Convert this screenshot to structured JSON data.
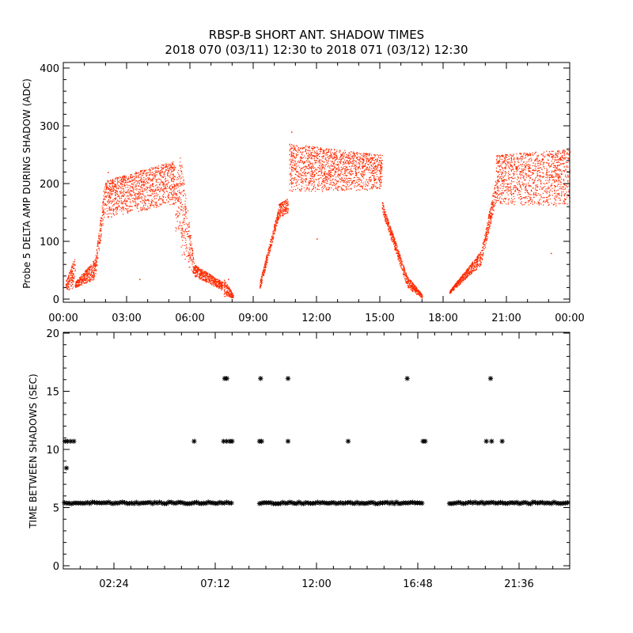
{
  "title": {
    "line1": "RBSP-B SHORT ANT. SHADOW TIMES",
    "line2": "2018 070 (03/11) 12:30 to 2018 071 (03/12) 12:30"
  },
  "colors": {
    "amplitude_points": "#ff2a00",
    "axes": "#000000",
    "background": "#ffffff"
  },
  "chart_data": [
    {
      "type": "scatter",
      "ylabel": "Probe 5 DELTA AMP DURING SHADOW (ADC)",
      "ylim": [
        0,
        400
      ],
      "yticks": [
        "0",
        "100",
        "200",
        "300",
        "400"
      ],
      "xlim_hours": [
        0,
        24
      ],
      "xticks": [
        "00:00",
        "03:00",
        "06:00",
        "09:00",
        "12:00",
        "15:00",
        "18:00",
        "21:00",
        "00:00"
      ],
      "marker": "dot",
      "series": [
        {
          "bands": [
            {
              "x_start": 0.1,
              "x_end": 0.55,
              "low": [
                15,
                20
              ],
              "high": [
                30,
                75
              ]
            },
            {
              "x_start": 0.55,
              "x_end": 1.5,
              "low": [
                20,
                35
              ],
              "high": [
                30,
                70
              ]
            },
            {
              "x_start": 1.5,
              "x_end": 1.9,
              "low": [
                35,
                140
              ],
              "high": [
                70,
                185
              ]
            },
            {
              "x_start": 1.9,
              "x_end": 5.3,
              "low": [
                140,
                165
              ],
              "high": [
                205,
                240
              ]
            },
            {
              "x_start": 5.3,
              "x_end": 5.55,
              "low": [
                110,
                120
              ],
              "high": [
                200,
                250
              ]
            },
            {
              "x_start": 5.55,
              "x_end": 6.2,
              "low": [
                80,
                40
              ],
              "high": [
                250,
                60
              ]
            },
            {
              "x_start": 6.2,
              "x_end": 7.55,
              "low": [
                40,
                15
              ],
              "high": [
                60,
                30
              ]
            },
            {
              "x_start": 7.6,
              "x_end": 8.05,
              "low": [
                5,
                2
              ],
              "high": [
                35,
                8
              ]
            },
            {
              "x_start": 9.3,
              "x_end": 10.2,
              "low": [
                15,
                140
              ],
              "high": [
                30,
                160
              ]
            },
            {
              "x_start": 10.2,
              "x_end": 10.65,
              "low": [
                140,
                150
              ],
              "high": [
                165,
                175
              ]
            },
            {
              "x_start": 10.7,
              "x_end": 15.1,
              "low": [
                185,
                190
              ],
              "high": [
                270,
                250
              ]
            },
            {
              "x_start": 15.1,
              "x_end": 15.55,
              "low": [
                150,
                100
              ],
              "high": [
                170,
                120
              ]
            },
            {
              "x_start": 15.55,
              "x_end": 16.3,
              "low": [
                100,
                20
              ],
              "high": [
                120,
                40
              ]
            },
            {
              "x_start": 16.3,
              "x_end": 17.0,
              "low": [
                20,
                2
              ],
              "high": [
                40,
                8
              ]
            },
            {
              "x_start": 18.3,
              "x_end": 19.8,
              "low": [
                10,
                60
              ],
              "high": [
                15,
                85
              ]
            },
            {
              "x_start": 19.8,
              "x_end": 20.5,
              "low": [
                60,
                170
              ],
              "high": [
                85,
                210
              ]
            },
            {
              "x_start": 20.5,
              "x_end": 24.0,
              "low": [
                165,
                160
              ],
              "high": [
                250,
                260
              ]
            }
          ],
          "outliers": [
            [
              10.8,
              290
            ],
            [
              12.0,
              105
            ],
            [
              7.8,
              35
            ],
            [
              3.6,
              35
            ],
            [
              23.1,
              80
            ],
            [
              2.1,
              220
            ]
          ]
        }
      ]
    },
    {
      "type": "scatter",
      "ylabel": "TIME BETWEEN SHADOWS (SEC)",
      "ylim": [
        0,
        20
      ],
      "yticks": [
        "0",
        "5",
        "10",
        "15",
        "20"
      ],
      "xlim_hours": [
        0,
        24
      ],
      "xticks": [
        "02:24",
        "07:12",
        "12:00",
        "16:48",
        "21:36"
      ],
      "xtick_hours": [
        2.4,
        7.2,
        12.0,
        16.8,
        21.6
      ],
      "marker": "asterisk",
      "series": [
        {
          "baseline_value": 5.4,
          "baseline_ranges": [
            [
              0.05,
              8.05
            ],
            [
              9.3,
              17.1
            ],
            [
              18.3,
              24.0
            ]
          ],
          "points": [
            [
              0.15,
              8.4
            ],
            [
              0.08,
              10.7
            ],
            [
              0.2,
              10.7
            ],
            [
              0.35,
              10.7
            ],
            [
              0.5,
              10.7
            ],
            [
              6.2,
              10.7
            ],
            [
              7.6,
              10.7
            ],
            [
              7.75,
              10.7
            ],
            [
              7.9,
              10.7
            ],
            [
              8.0,
              10.7
            ],
            [
              9.3,
              10.7
            ],
            [
              9.4,
              10.7
            ],
            [
              10.65,
              10.7
            ],
            [
              13.5,
              10.7
            ],
            [
              17.05,
              10.7
            ],
            [
              17.15,
              10.7
            ],
            [
              20.05,
              10.7
            ],
            [
              20.3,
              10.7
            ],
            [
              20.8,
              10.7
            ],
            [
              7.65,
              16.1
            ],
            [
              7.75,
              16.1
            ],
            [
              9.35,
              16.1
            ],
            [
              10.65,
              16.1
            ],
            [
              16.3,
              16.1
            ],
            [
              20.25,
              16.1
            ]
          ]
        }
      ]
    }
  ]
}
